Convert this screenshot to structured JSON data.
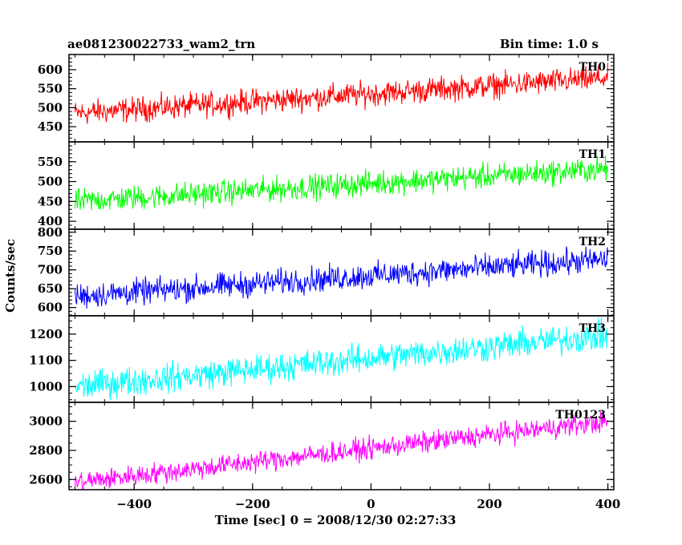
{
  "chart_data": {
    "type": "line",
    "title": "ae081230022733_wam2_trn",
    "bin_time_label": "Bin time: 1.0 s",
    "xlabel": "Time [sec] 0 = 2008/12/30 02:27:33",
    "ylabel": "Counts/sec",
    "xlim": [
      -510,
      410
    ],
    "x_ticks": [
      -400,
      -200,
      0,
      200,
      400
    ],
    "x_tick_labels": [
      "−400",
      "−200",
      "0",
      "200",
      "400"
    ],
    "grid": false,
    "series": [
      {
        "name": "TH0",
        "color": "#ff0000",
        "ylim": [
          410,
          640
        ],
        "y_ticks": [
          450,
          500,
          550,
          600
        ],
        "y_tick_labels": [
          "450",
          "500",
          "550",
          "600"
        ],
        "x_range": [
          -500,
          400
        ],
        "trend_start": 485,
        "trend_end": 578,
        "noise_amplitude": 40
      },
      {
        "name": "TH1",
        "color": "#00ff00",
        "ylim": [
          380,
          600
        ],
        "y_ticks": [
          400,
          450,
          500,
          550
        ],
        "y_tick_labels": [
          "400",
          "450",
          "500",
          "550"
        ],
        "x_range": [
          -500,
          400
        ],
        "trend_start": 450,
        "trend_end": 532,
        "noise_amplitude": 38
      },
      {
        "name": "TH2",
        "color": "#0000ff",
        "ylim": [
          578,
          808
        ],
        "y_ticks": [
          600,
          650,
          700,
          750,
          800
        ],
        "y_tick_labels": [
          "600",
          "650",
          "700",
          "750",
          "800"
        ],
        "x_range": [
          -500,
          400
        ],
        "trend_start": 630,
        "trend_end": 728,
        "noise_amplitude": 42
      },
      {
        "name": "TH3",
        "color": "#00ffff",
        "ylim": [
          940,
          1270
        ],
        "y_ticks": [
          1000,
          1100,
          1200
        ],
        "y_tick_labels": [
          "1000",
          "1100",
          "1200"
        ],
        "x_range": [
          -500,
          400
        ],
        "trend_start": 1000,
        "trend_end": 1195,
        "noise_amplitude": 68
      },
      {
        "name": "TH0123",
        "color": "#ff00ff",
        "ylim": [
          2530,
          3130
        ],
        "y_ticks": [
          2600,
          2800,
          3000
        ],
        "y_tick_labels": [
          "2600",
          "2800",
          "3000"
        ],
        "x_range": [
          -500,
          400
        ],
        "trend_start": 2580,
        "trend_end": 3000,
        "noise_amplitude": 90
      }
    ]
  }
}
